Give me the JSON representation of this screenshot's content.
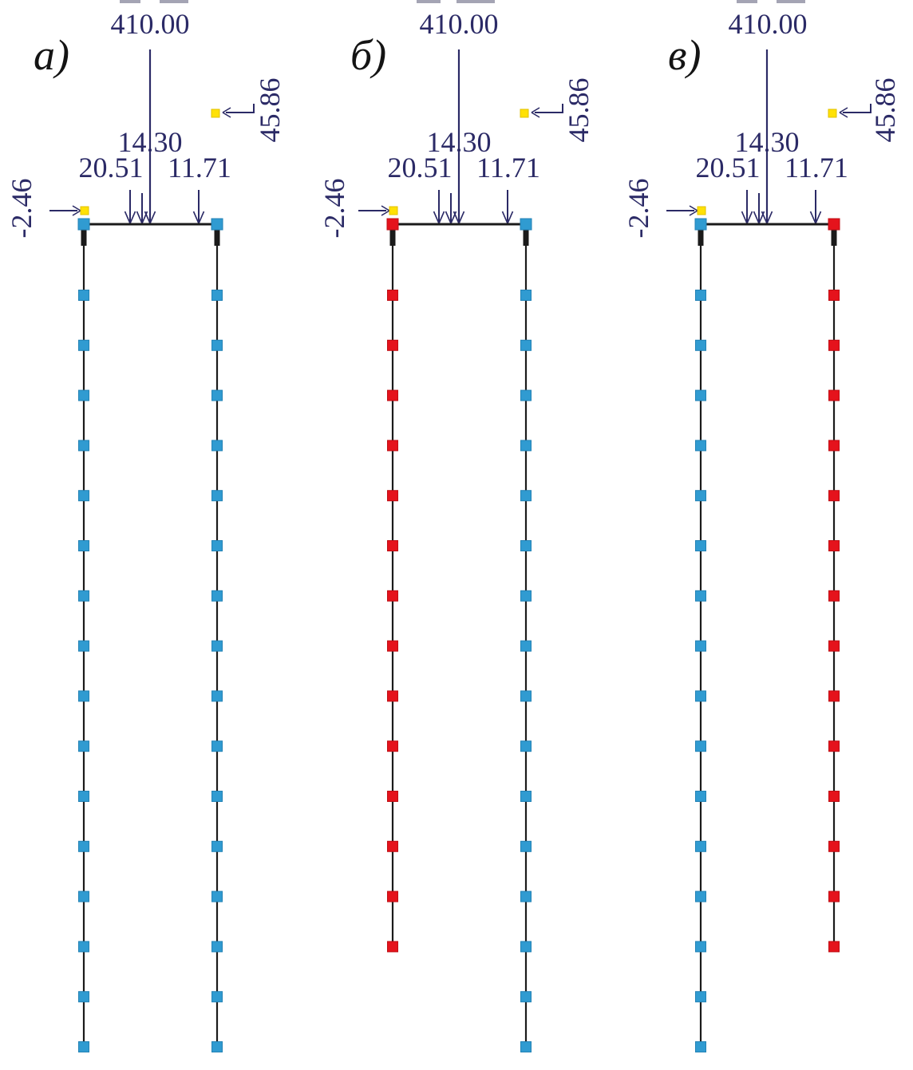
{
  "figure": {
    "background": "#ffffff",
    "palette": {
      "annotation_text": "#2b2a66",
      "diagram_label_text": "#141414",
      "structure_line": "#1b1b1b",
      "pile_blue": "#309bd1",
      "pile_blue_edge": "#2382b5",
      "pile_red": "#e5131c",
      "pile_red_edge": "#bf0e14",
      "node_yellow": "#ffe105",
      "node_yellow_edge": "#e0c100"
    },
    "loads": {
      "vertical_force": "410.00",
      "upper_horizontal_force": "45.86",
      "distributed_center": "14.30",
      "distributed_left": "20.51",
      "distributed_right": "11.71",
      "lower_horizontal_force": "-2.46"
    },
    "diagrams": [
      {
        "id": "a",
        "label": "а)",
        "piles": [
          {
            "position": "left",
            "color": "blue",
            "marker_count": 16
          },
          {
            "position": "right",
            "color": "blue",
            "marker_count": 16
          }
        ]
      },
      {
        "id": "b",
        "label": "б)",
        "piles": [
          {
            "position": "left",
            "color": "red",
            "marker_count": 14
          },
          {
            "position": "right",
            "color": "blue",
            "marker_count": 16
          }
        ]
      },
      {
        "id": "v",
        "label": "в)",
        "piles": [
          {
            "position": "left",
            "color": "blue",
            "marker_count": 16
          },
          {
            "position": "right",
            "color": "red",
            "marker_count": 14
          }
        ]
      }
    ]
  }
}
